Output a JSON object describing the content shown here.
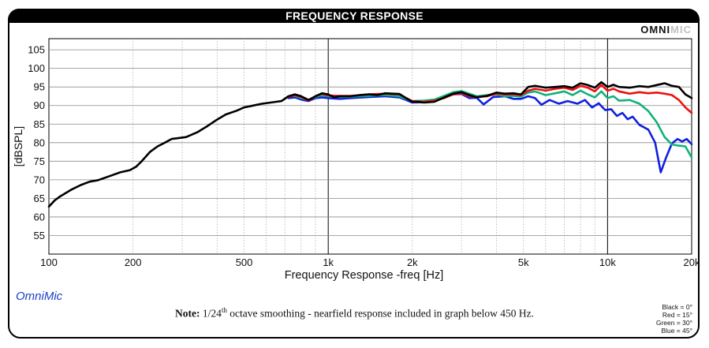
{
  "header": {
    "title": "FREQUENCY RESPONSE",
    "brand_dark": "OMNI",
    "brand_light": "MIC"
  },
  "footer": {
    "app_label": "OmniMic",
    "note_label": "Note:",
    "note_pre": "1/24",
    "note_sup": "th",
    "note_post": " octave smoothing - nearfield response included in graph below 450 Hz.",
    "legend_lines": [
      "Black = 0°",
      "Red = 15°",
      "Green = 30°",
      "Blue = 45°"
    ]
  },
  "colors": {
    "black": "#000000",
    "red": "#ee1111",
    "green": "#10b27a",
    "blue": "#1020e0",
    "grid": "#b0b0b0"
  },
  "chart_data": {
    "type": "line",
    "xlabel": "Frequency Response -freq [Hz]",
    "ylabel": "[dBSPL]",
    "xscale": "log",
    "xlim": [
      100,
      20000
    ],
    "ylim": [
      50,
      108
    ],
    "x_ticks": [
      {
        "value": 100,
        "label": "100"
      },
      {
        "value": 200,
        "label": "200"
      },
      {
        "value": 500,
        "label": "500"
      },
      {
        "value": 1000,
        "label": "1k"
      },
      {
        "value": 2000,
        "label": "2k"
      },
      {
        "value": 5000,
        "label": "5k"
      },
      {
        "value": 10000,
        "label": "10k"
      },
      {
        "value": 20000,
        "label": "20k"
      }
    ],
    "y_ticks": [
      55,
      60,
      65,
      70,
      75,
      80,
      85,
      90,
      95,
      100,
      105
    ],
    "grid": true,
    "series": [
      {
        "name": "Black = 0°",
        "color": "#000000",
        "points": [
          [
            100,
            62.8
          ],
          [
            105,
            64.5
          ],
          [
            110,
            65.6
          ],
          [
            120,
            67.3
          ],
          [
            130,
            68.6
          ],
          [
            140,
            69.5
          ],
          [
            150,
            69.9
          ],
          [
            165,
            71
          ],
          [
            180,
            72
          ],
          [
            195,
            72.6
          ],
          [
            205,
            73.5
          ],
          [
            215,
            75
          ],
          [
            230,
            77.5
          ],
          [
            245,
            79
          ],
          [
            260,
            80
          ],
          [
            275,
            81
          ],
          [
            290,
            81.2
          ],
          [
            310,
            81.5
          ],
          [
            340,
            82.8
          ],
          [
            370,
            84.5
          ],
          [
            400,
            86.2
          ],
          [
            430,
            87.6
          ],
          [
            470,
            88.6
          ],
          [
            500,
            89.5
          ],
          [
            540,
            90
          ],
          [
            580,
            90.5
          ],
          [
            620,
            90.8
          ],
          [
            680,
            91.2
          ],
          [
            720,
            92.5
          ],
          [
            760,
            93
          ],
          [
            800,
            92.5
          ],
          [
            850,
            91.5
          ],
          [
            900,
            92.5
          ],
          [
            950,
            93.3
          ],
          [
            1000,
            93
          ],
          [
            1050,
            92.2
          ],
          [
            1100,
            92.5
          ],
          [
            1200,
            92.5
          ],
          [
            1300,
            92.8
          ],
          [
            1400,
            93
          ],
          [
            1500,
            92.8
          ],
          [
            1600,
            93.3
          ],
          [
            1700,
            93.2
          ],
          [
            1800,
            93.1
          ],
          [
            1900,
            92
          ],
          [
            2000,
            91
          ],
          [
            2100,
            91
          ],
          [
            2200,
            90.8
          ],
          [
            2400,
            91
          ],
          [
            2600,
            92.2
          ],
          [
            2800,
            93.2
          ],
          [
            3000,
            93.6
          ],
          [
            3200,
            92.8
          ],
          [
            3400,
            92.2
          ],
          [
            3700,
            92.6
          ],
          [
            4000,
            93.5
          ],
          [
            4300,
            93.2
          ],
          [
            4600,
            93.3
          ],
          [
            4900,
            93
          ],
          [
            5200,
            95
          ],
          [
            5500,
            95.3
          ],
          [
            6000,
            94.8
          ],
          [
            6500,
            95
          ],
          [
            7000,
            95.2
          ],
          [
            7500,
            94.8
          ],
          [
            8000,
            96
          ],
          [
            8500,
            95.5
          ],
          [
            9000,
            94.8
          ],
          [
            9500,
            96.3
          ],
          [
            10000,
            95
          ],
          [
            10500,
            95.6
          ],
          [
            11000,
            95
          ],
          [
            12000,
            94.8
          ],
          [
            13000,
            95.2
          ],
          [
            14000,
            95
          ],
          [
            15000,
            95.5
          ],
          [
            16000,
            96
          ],
          [
            17000,
            95.3
          ],
          [
            18000,
            95
          ],
          [
            19000,
            93
          ],
          [
            20000,
            92
          ]
        ]
      },
      {
        "name": "Red = 15°",
        "color": "#ee1111",
        "points": [
          [
            720,
            92.3
          ],
          [
            760,
            92.8
          ],
          [
            800,
            92.3
          ],
          [
            850,
            91.3
          ],
          [
            900,
            92.5
          ],
          [
            950,
            93.2
          ],
          [
            1000,
            92.7
          ],
          [
            1100,
            92.6
          ],
          [
            1200,
            92.6
          ],
          [
            1400,
            93
          ],
          [
            1600,
            93.2
          ],
          [
            1800,
            93
          ],
          [
            1900,
            92
          ],
          [
            2000,
            91.2
          ],
          [
            2200,
            91
          ],
          [
            2400,
            91.3
          ],
          [
            2600,
            92
          ],
          [
            2800,
            93
          ],
          [
            3000,
            93.3
          ],
          [
            3200,
            92.5
          ],
          [
            3400,
            92.3
          ],
          [
            3700,
            92.5
          ],
          [
            4000,
            93.2
          ],
          [
            4300,
            93
          ],
          [
            4600,
            93
          ],
          [
            4900,
            92.8
          ],
          [
            5200,
            94
          ],
          [
            5500,
            94.5
          ],
          [
            6000,
            94
          ],
          [
            6500,
            94.5
          ],
          [
            7000,
            94.8
          ],
          [
            7500,
            94.2
          ],
          [
            8000,
            95.3
          ],
          [
            8500,
            94.8
          ],
          [
            9000,
            93.8
          ],
          [
            9500,
            95.5
          ],
          [
            10000,
            94
          ],
          [
            10500,
            94.5
          ],
          [
            11000,
            93.8
          ],
          [
            12000,
            93.2
          ],
          [
            13000,
            93.6
          ],
          [
            14000,
            93.3
          ],
          [
            15000,
            93.5
          ],
          [
            16000,
            93.2
          ],
          [
            17000,
            92.8
          ],
          [
            18000,
            91.5
          ],
          [
            19000,
            89.5
          ],
          [
            20000,
            88
          ]
        ]
      },
      {
        "name": "Green = 30°",
        "color": "#10b27a",
        "points": [
          [
            720,
            92.5
          ],
          [
            760,
            92.6
          ],
          [
            800,
            92
          ],
          [
            850,
            91.5
          ],
          [
            900,
            92.3
          ],
          [
            950,
            92.8
          ],
          [
            1000,
            92.5
          ],
          [
            1100,
            92.3
          ],
          [
            1200,
            92.4
          ],
          [
            1400,
            92.6
          ],
          [
            1600,
            92.8
          ],
          [
            1800,
            92.5
          ],
          [
            1900,
            91.8
          ],
          [
            2000,
            91.2
          ],
          [
            2200,
            91.3
          ],
          [
            2400,
            91.6
          ],
          [
            2600,
            92.6
          ],
          [
            2800,
            93.6
          ],
          [
            3000,
            93.9
          ],
          [
            3200,
            93.2
          ],
          [
            3400,
            92.5
          ],
          [
            3700,
            92.8
          ],
          [
            4000,
            93
          ],
          [
            4300,
            92.5
          ],
          [
            4600,
            92.6
          ],
          [
            4900,
            92.4
          ],
          [
            5200,
            93.5
          ],
          [
            5500,
            93.8
          ],
          [
            6000,
            92.8
          ],
          [
            6500,
            93.3
          ],
          [
            7000,
            93.8
          ],
          [
            7500,
            92.8
          ],
          [
            8000,
            94
          ],
          [
            8500,
            93
          ],
          [
            9000,
            92.2
          ],
          [
            9500,
            93.8
          ],
          [
            10000,
            92
          ],
          [
            10500,
            92.5
          ],
          [
            11000,
            91.3
          ],
          [
            12000,
            91.5
          ],
          [
            13000,
            90.5
          ],
          [
            14000,
            88.5
          ],
          [
            15000,
            85.5
          ],
          [
            16000,
            81.5
          ],
          [
            17000,
            79.5
          ],
          [
            18000,
            79.2
          ],
          [
            19000,
            79
          ],
          [
            20000,
            76
          ]
        ]
      },
      {
        "name": "Blue = 45°",
        "color": "#1020e0",
        "points": [
          [
            720,
            92
          ],
          [
            760,
            92.2
          ],
          [
            800,
            91.6
          ],
          [
            850,
            91.2
          ],
          [
            900,
            92
          ],
          [
            950,
            92.2
          ],
          [
            1000,
            92
          ],
          [
            1100,
            91.8
          ],
          [
            1200,
            92
          ],
          [
            1400,
            92.3
          ],
          [
            1600,
            92.5
          ],
          [
            1800,
            92.2
          ],
          [
            1900,
            91.5
          ],
          [
            2000,
            90.8
          ],
          [
            2200,
            90.9
          ],
          [
            2400,
            91.2
          ],
          [
            2600,
            92.2
          ],
          [
            2800,
            93
          ],
          [
            3000,
            93.1
          ],
          [
            3200,
            92
          ],
          [
            3400,
            92.1
          ],
          [
            3600,
            90.3
          ],
          [
            3900,
            92.3
          ],
          [
            4300,
            92.5
          ],
          [
            4600,
            91.8
          ],
          [
            4900,
            91.8
          ],
          [
            5200,
            92.5
          ],
          [
            5500,
            92
          ],
          [
            5800,
            90.2
          ],
          [
            6200,
            91.5
          ],
          [
            6700,
            90.5
          ],
          [
            7200,
            91.2
          ],
          [
            7800,
            90.5
          ],
          [
            8300,
            91.5
          ],
          [
            8800,
            89.5
          ],
          [
            9300,
            90.6
          ],
          [
            9800,
            88.8
          ],
          [
            10300,
            89
          ],
          [
            10800,
            87.2
          ],
          [
            11300,
            88
          ],
          [
            11800,
            86.3
          ],
          [
            12300,
            87
          ],
          [
            13000,
            84.8
          ],
          [
            14000,
            83.5
          ],
          [
            14800,
            80
          ],
          [
            15500,
            72
          ],
          [
            16200,
            76
          ],
          [
            17000,
            79.8
          ],
          [
            17800,
            81
          ],
          [
            18500,
            80.3
          ],
          [
            19200,
            81
          ],
          [
            20000,
            79.6
          ]
        ]
      }
    ]
  }
}
